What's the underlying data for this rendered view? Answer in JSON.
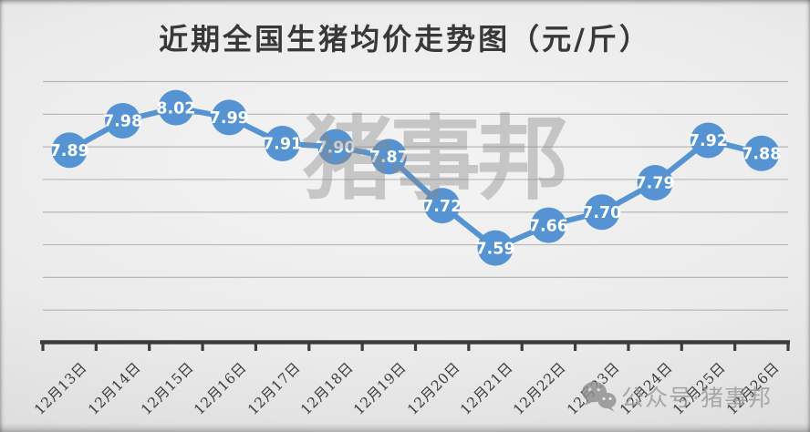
{
  "page": {
    "title": "近期全国生猪均价走势图（元/斤）"
  },
  "chart_data": {
    "type": "line",
    "title": "近期全国生猪均价走势图（元/斤）",
    "unit": "元/斤",
    "categories": [
      "12月13日",
      "12月14日",
      "12月15日",
      "12月16日",
      "12月17日",
      "12月18日",
      "12月19日",
      "12月20日",
      "12月21日",
      "12月22日",
      "12月23日",
      "12月24日",
      "12月25日",
      "12月26日"
    ],
    "values": [
      7.89,
      7.98,
      8.02,
      7.99,
      7.91,
      7.9,
      7.87,
      7.72,
      7.59,
      7.66,
      7.7,
      7.79,
      7.92,
      7.88
    ],
    "xlabel": "",
    "ylabel": "",
    "ylim": [
      7.3,
      8.1
    ],
    "grid_step": 0.1,
    "grid": "horizontal",
    "legend": "none",
    "marker": "circle",
    "data_labels": "inside-marker",
    "colors": {
      "line": "#5593d2",
      "marker": "#5593d2",
      "data_label": "#ffffff",
      "axis": "#3c3c3c",
      "gridline": "#9a9a9a",
      "title_text": "#383838",
      "xtick_text": "#3c3c3c"
    }
  },
  "watermark": {
    "center_text": "猪事邦",
    "center_color": "#8a8a8a",
    "footer_icon": "wechat-icon",
    "footer_text": "公众号·猪事邦",
    "footer_color": "#999999"
  }
}
